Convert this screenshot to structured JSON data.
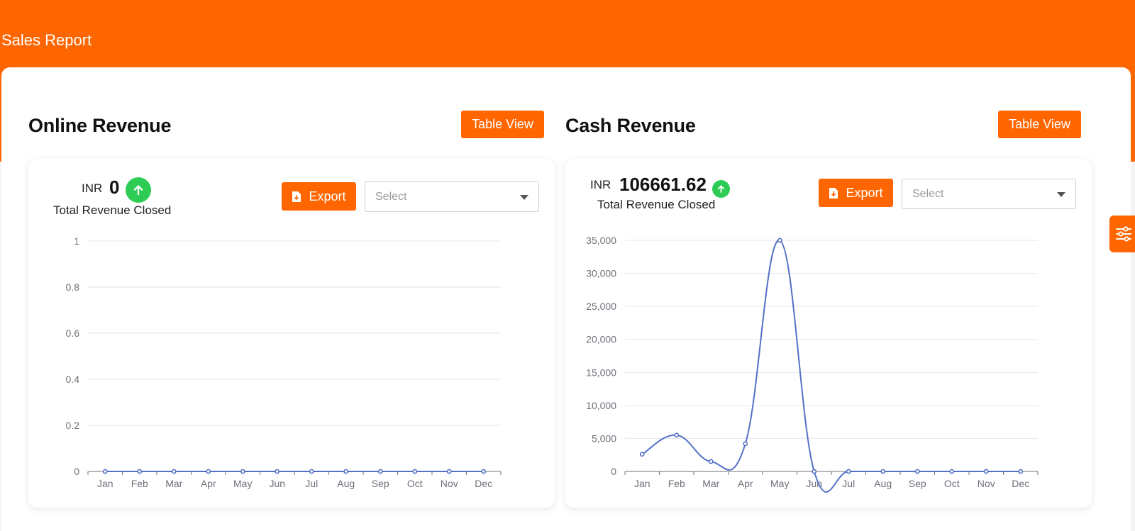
{
  "page": {
    "title": "Sales Report"
  },
  "colors": {
    "accent": "#ff6600",
    "success": "#2ecc55",
    "series": "#5470c6"
  },
  "online": {
    "title": "Online Revenue",
    "table_view_label": "Table View",
    "currency": "INR",
    "amount": "0",
    "caption": "Total Revenue Closed",
    "export_label": "Export",
    "select_placeholder": "Select"
  },
  "cash": {
    "title": "Cash Revenue",
    "table_view_label": "Table View",
    "currency": "INR",
    "amount": "106661.62",
    "caption": "Total Revenue Closed",
    "export_label": "Export",
    "select_placeholder": "Select"
  },
  "icons": {
    "upload": "arrow-up-icon",
    "export": "file-download-icon",
    "settings": "sliders-icon",
    "dropdown": "caret-down-icon"
  },
  "chart_data": [
    {
      "type": "line",
      "categories": [
        "Jan",
        "Feb",
        "Mar",
        "Apr",
        "May",
        "Jun",
        "Jul",
        "Aug",
        "Sep",
        "Oct",
        "Nov",
        "Dec"
      ],
      "values": [
        0,
        0,
        0,
        0,
        0,
        0,
        0,
        0,
        0,
        0,
        0,
        0
      ],
      "yticks": [
        "0",
        "0.2",
        "0.4",
        "0.6",
        "0.8",
        "1"
      ],
      "ylim": [
        0,
        1
      ],
      "grid": true,
      "smooth": true
    },
    {
      "type": "line",
      "categories": [
        "Jan",
        "Feb",
        "Mar",
        "Apr",
        "May",
        "Jun",
        "Jul",
        "Aug",
        "Sep",
        "Oct",
        "Nov",
        "Dec"
      ],
      "values": [
        2600,
        5500,
        1500,
        4200,
        35000,
        0,
        0,
        0,
        0,
        0,
        0,
        0
      ],
      "yticks": [
        "0",
        "5,000",
        "10,000",
        "15,000",
        "20,000",
        "25,000",
        "30,000",
        "35,000"
      ],
      "ylim": [
        0,
        35000
      ],
      "grid": true,
      "smooth": true
    }
  ]
}
